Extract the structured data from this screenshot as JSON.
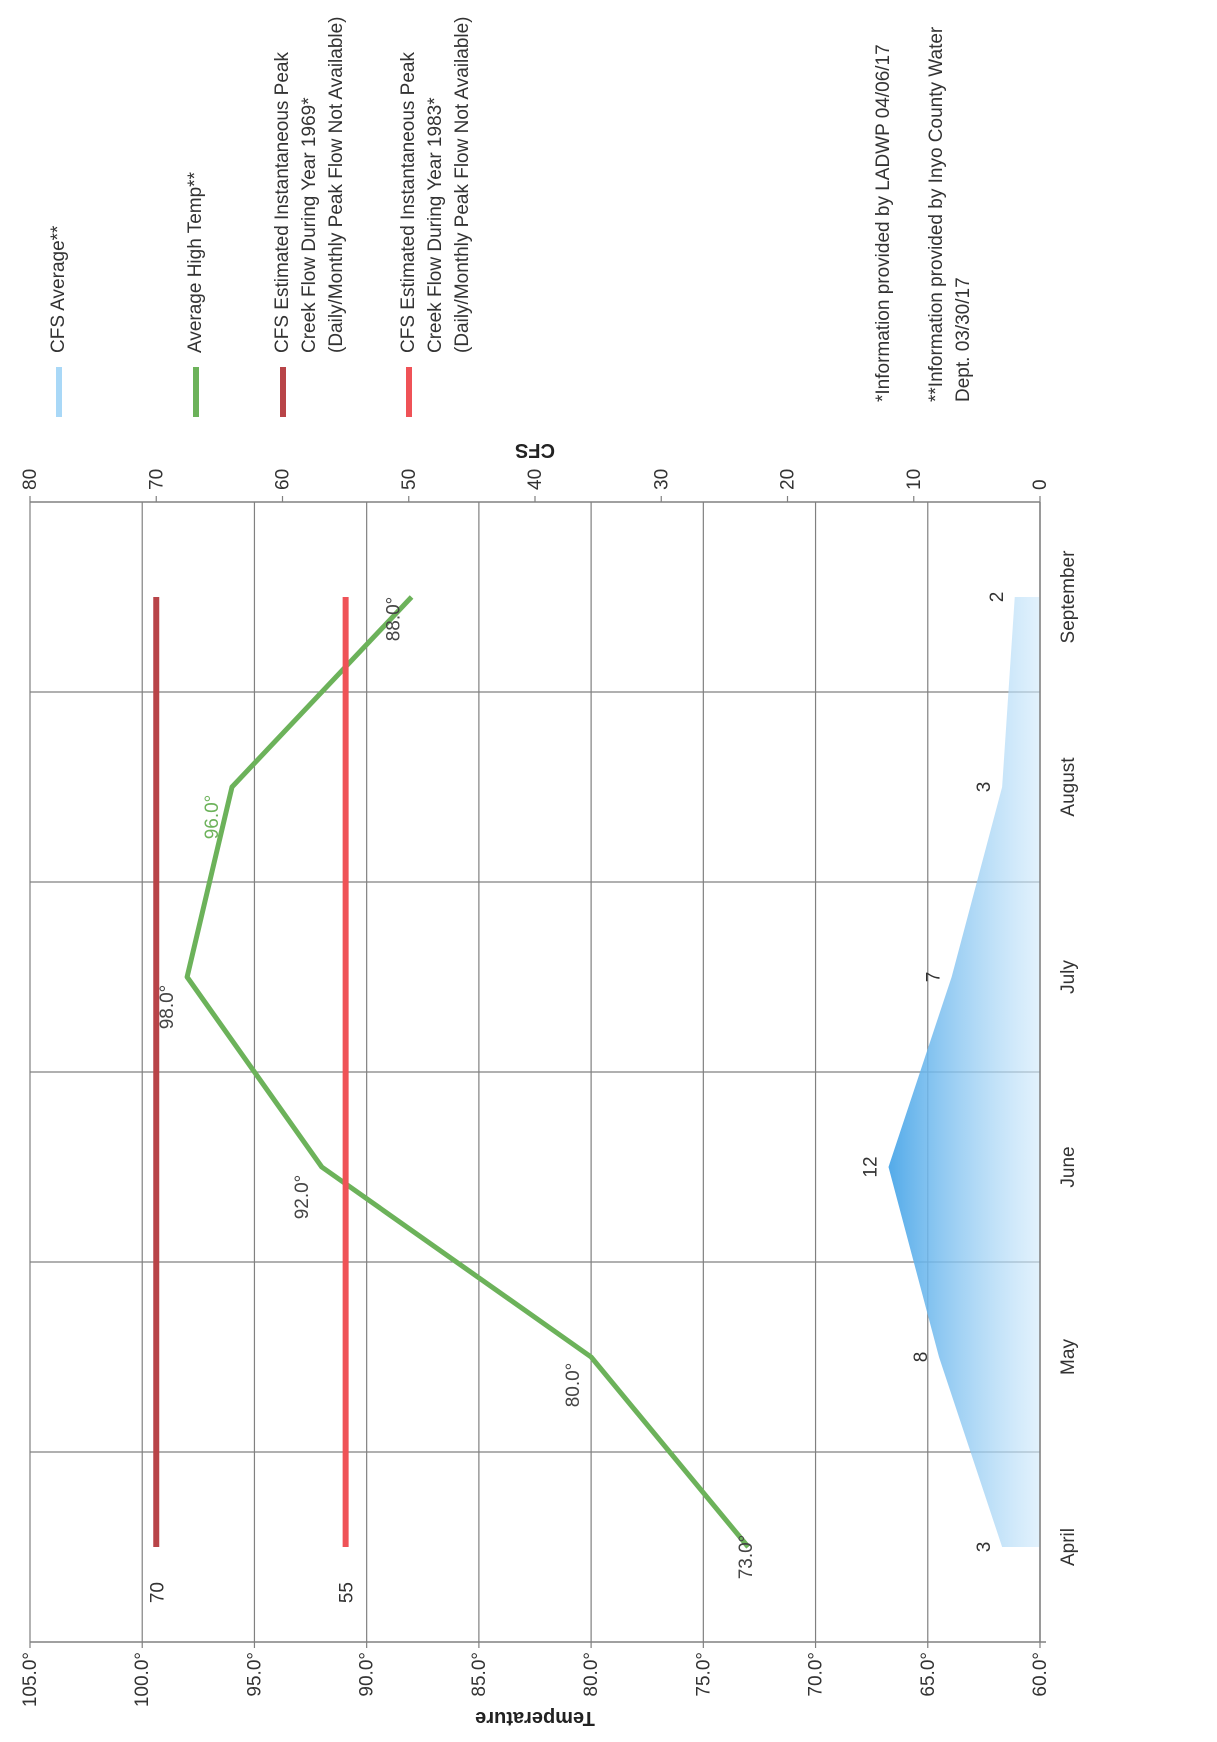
{
  "chart_data": {
    "type": "line",
    "categories": [
      "April",
      "May",
      "June",
      "July",
      "August",
      "September"
    ],
    "ylabel": "Temperature",
    "y2label": "CFS",
    "ylim": [
      60,
      105
    ],
    "y2lim": [
      0,
      80
    ],
    "y_ticks": [
      "60.0°",
      "65.0°",
      "70.0°",
      "75.0°",
      "80.0°",
      "85.0°",
      "90.0°",
      "95.0°",
      "100.0°",
      "105.0°"
    ],
    "y2_ticks": [
      "0",
      "10",
      "20",
      "30",
      "40",
      "50",
      "60",
      "70",
      "80"
    ],
    "grid": true,
    "series": [
      {
        "name": "CFS Average**",
        "axis": "right",
        "kind": "area",
        "color": "#7cc4f2",
        "x": [
          "April",
          "May",
          "June",
          "July",
          "August",
          "September"
        ],
        "values": [
          3,
          8,
          12,
          7,
          3,
          2
        ],
        "labels": [
          "3",
          "8",
          "12",
          "7",
          "3",
          "2"
        ]
      },
      {
        "name": "Average High Temp**",
        "axis": "left",
        "kind": "line",
        "color": "#6cb25a",
        "x": [
          "April",
          "May",
          "June",
          "July",
          "August",
          "September"
        ],
        "values": [
          73.0,
          80.0,
          92.0,
          98.0,
          96.0,
          88.0
        ],
        "labels": [
          "73.0°",
          "80.0°",
          "92.0°",
          "98.0°",
          "96.0°",
          "88.0°"
        ]
      },
      {
        "name": "CFS Estimated Instantaneous Peak Creek Flow During Year 1969* (Daily/Monthly Peak Flow Not Available)",
        "axis": "right",
        "kind": "line",
        "color": "#b84448",
        "x": [
          "April",
          "September"
        ],
        "values": [
          70,
          70
        ],
        "labels": [
          "70"
        ]
      },
      {
        "name": "CFS Estimated Instantaneous Peak Creek Flow During Year 1983* (Daily/Monthly Peak Flow Not Available)",
        "axis": "right",
        "kind": "line",
        "color": "#ef5257",
        "x": [
          "April",
          "September"
        ],
        "values": [
          55,
          55
        ],
        "labels": [
          "55"
        ]
      }
    ]
  },
  "notes": [
    "*Information provided by LADWP 04/06/17",
    "**Information provided by Inyo County Water Dept.  03/30/17"
  ],
  "colors": {
    "grid": "#808080",
    "text": "#333333",
    "background": "#ffffff"
  }
}
